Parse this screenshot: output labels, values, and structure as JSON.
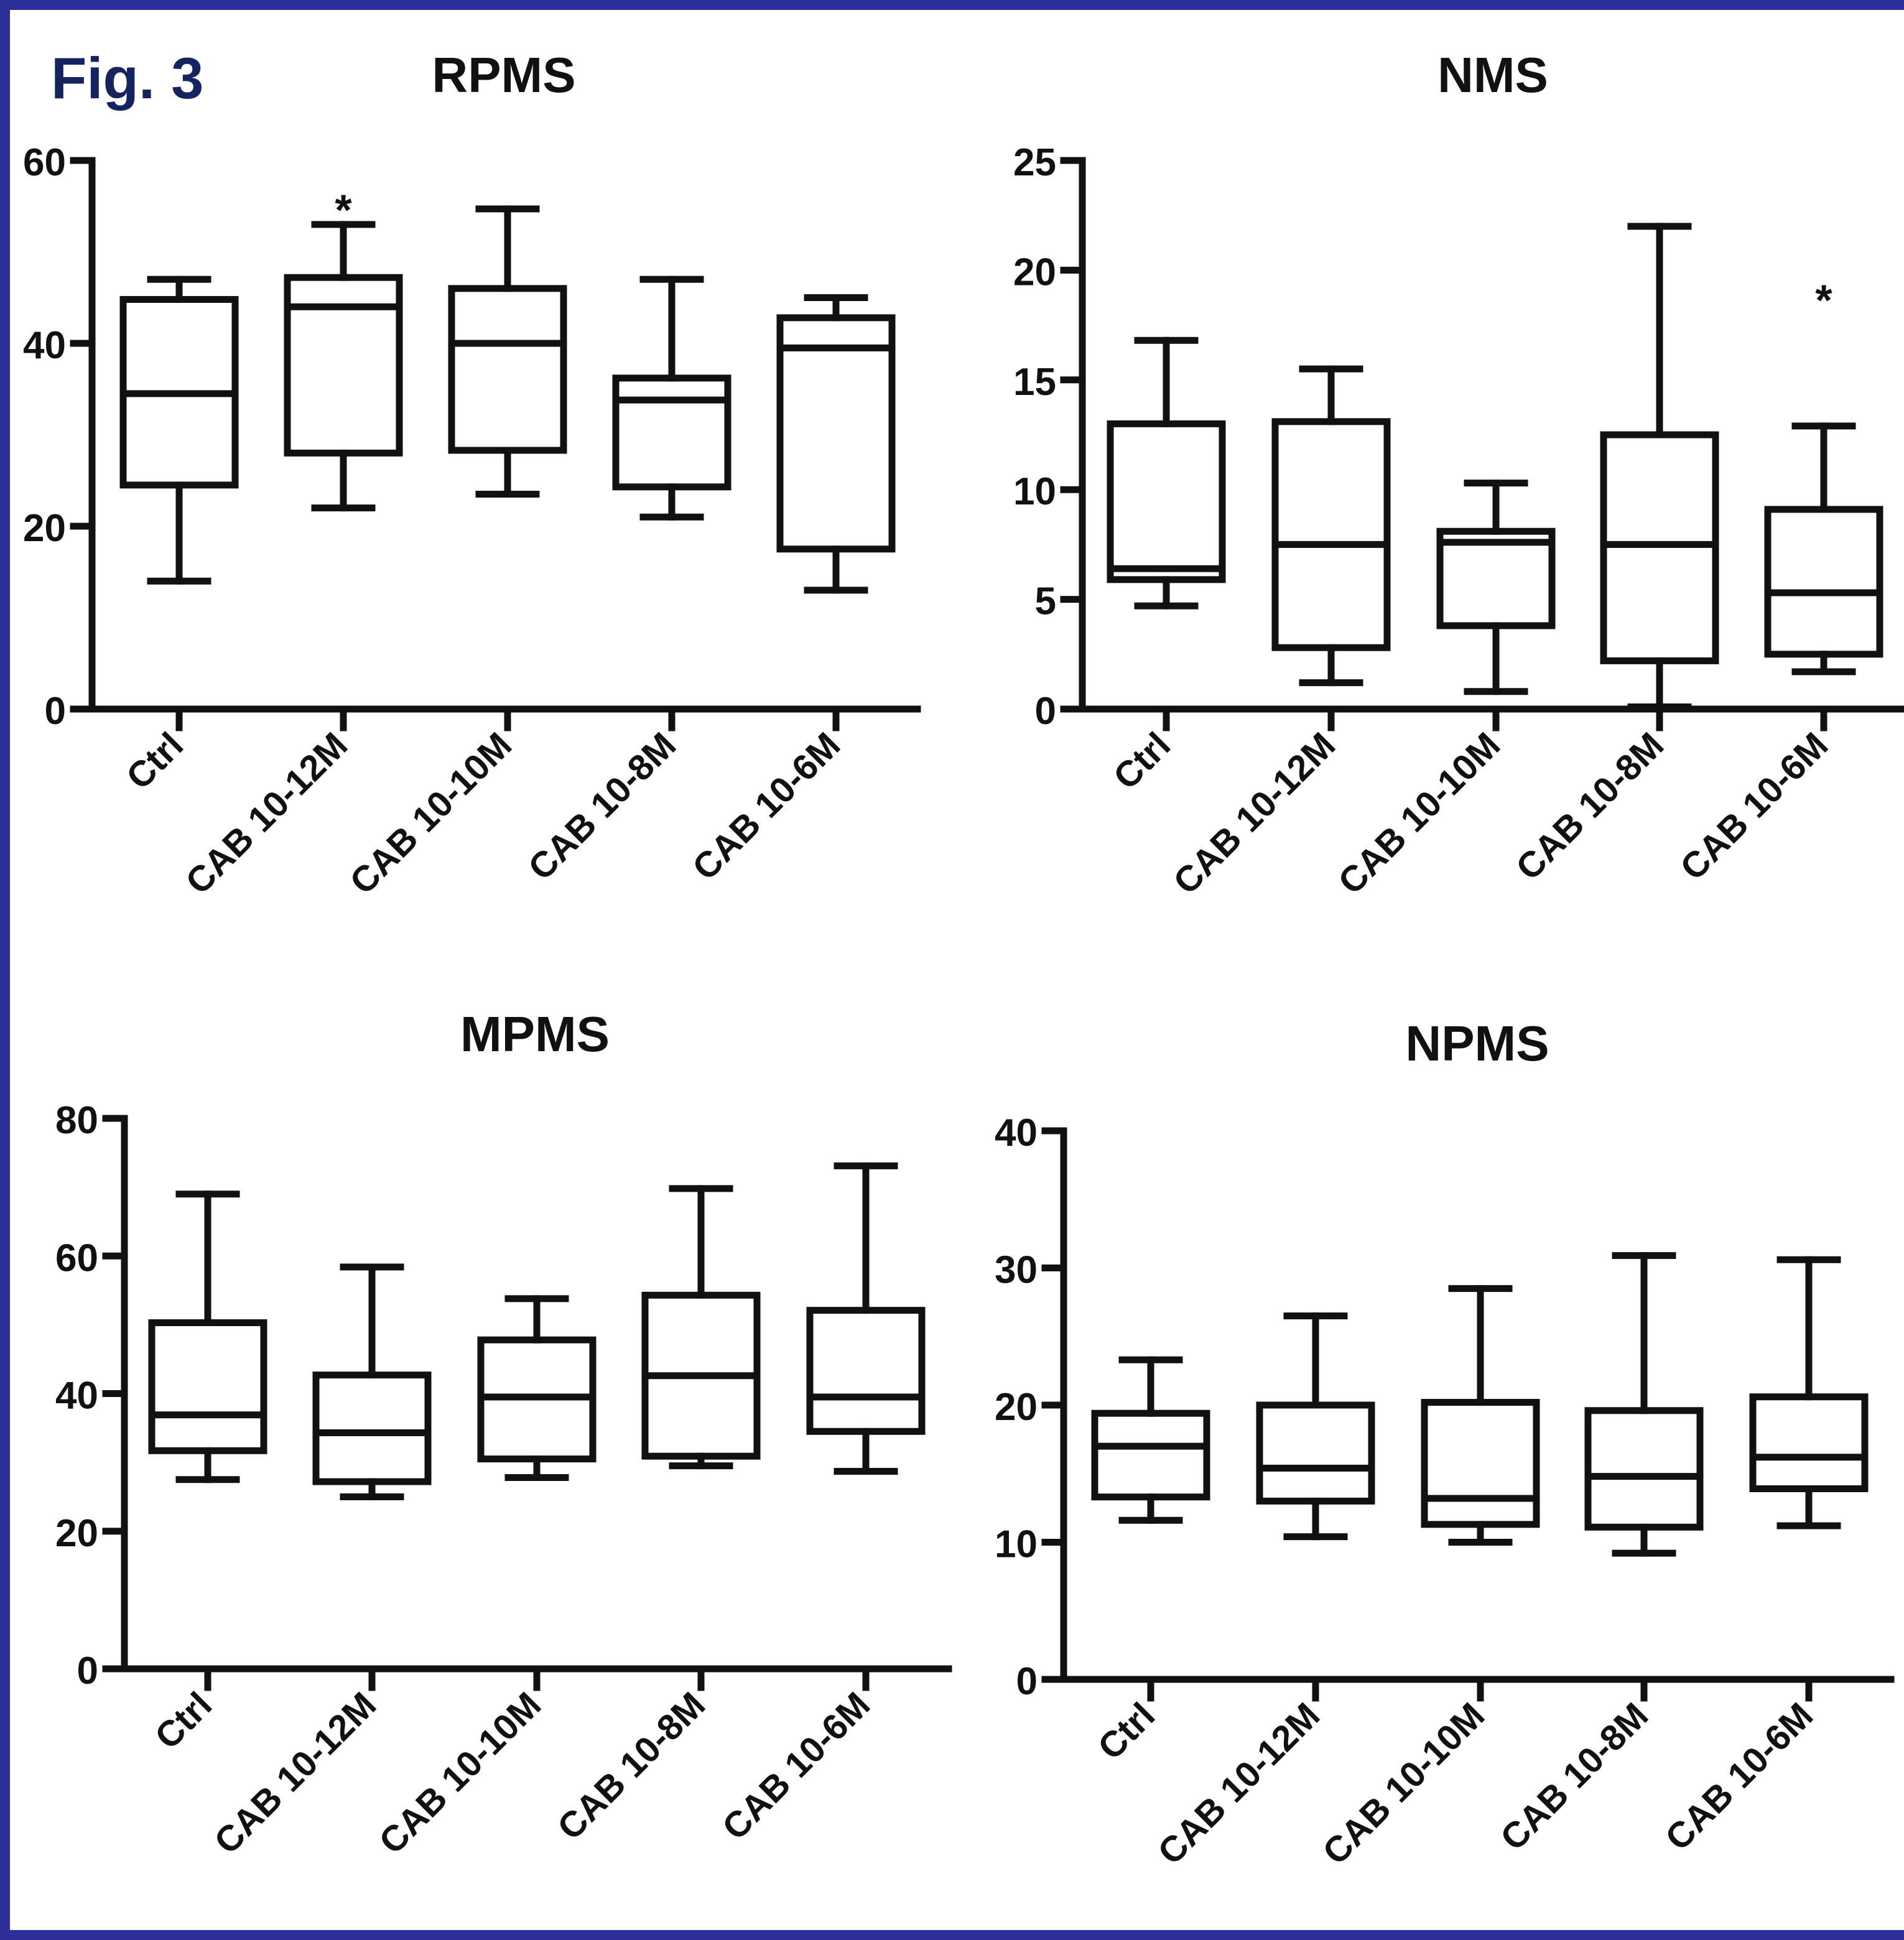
{
  "figure_label": "Fig. 3",
  "style": {
    "frame_color": "#2f2f9a",
    "label_color": "#15235e",
    "stroke_color": "#111111"
  },
  "chart_data": [
    {
      "type": "boxplot",
      "title": "RPMS",
      "categories": [
        "Ctrl",
        "CAB 10-12M",
        "CAB 10-10M",
        "CAB 10-8M",
        "CAB 10-6M"
      ],
      "ylim": [
        0,
        60
      ],
      "yticks": [
        0,
        20,
        40,
        60
      ],
      "boxes": [
        {
          "min": 14,
          "q1": 24.5,
          "median": 34.5,
          "q3": 44.8,
          "max": 47
        },
        {
          "min": 22,
          "q1": 28,
          "median": 44,
          "q3": 47.2,
          "max": 53
        },
        {
          "min": 23.5,
          "q1": 28.3,
          "median": 40,
          "q3": 46,
          "max": 54.7
        },
        {
          "min": 21,
          "q1": 24.3,
          "median": 33.8,
          "q3": 36.2,
          "max": 47
        },
        {
          "min": 13,
          "q1": 17.5,
          "median": 39.5,
          "q3": 42.8,
          "max": 45
        }
      ],
      "annotations": [
        {
          "category": "CAB 10-12M",
          "text": "*",
          "y": 55
        }
      ]
    },
    {
      "type": "boxplot",
      "title": "NMS",
      "categories": [
        "Ctrl",
        "CAB 10-12M",
        "CAB 10-10M",
        "CAB 10-8M",
        "CAB 10-6M"
      ],
      "ylim": [
        0,
        25
      ],
      "yticks": [
        0,
        5,
        10,
        15,
        20,
        25
      ],
      "boxes": [
        {
          "min": 4.7,
          "q1": 5.9,
          "median": 6.4,
          "q3": 13,
          "max": 16.8
        },
        {
          "min": 1.2,
          "q1": 2.8,
          "median": 7.5,
          "q3": 13.1,
          "max": 15.5
        },
        {
          "min": 0.8,
          "q1": 3.8,
          "median": 7.6,
          "q3": 8.1,
          "max": 10.3
        },
        {
          "min": 0.1,
          "q1": 2.2,
          "median": 7.5,
          "q3": 12.5,
          "max": 22
        },
        {
          "min": 1.7,
          "q1": 2.5,
          "median": 5.3,
          "q3": 9.1,
          "max": 12.9
        }
      ],
      "annotations": [
        {
          "category": "CAB 10-6M",
          "text": "*",
          "y": 18.8
        }
      ]
    },
    {
      "type": "boxplot",
      "title": "MPMS",
      "categories": [
        "Ctrl",
        "CAB 10-12M",
        "CAB 10-10M",
        "CAB 10-8M",
        "CAB 10-6M"
      ],
      "ylim": [
        0,
        80
      ],
      "yticks": [
        0,
        20,
        40,
        60,
        80
      ],
      "boxes": [
        {
          "min": 27.5,
          "q1": 31.7,
          "median": 36.9,
          "q3": 50.3,
          "max": 69
        },
        {
          "min": 25,
          "q1": 27.2,
          "median": 34.3,
          "q3": 42.7,
          "max": 58.4
        },
        {
          "min": 27.8,
          "q1": 30.5,
          "median": 39.5,
          "q3": 47.8,
          "max": 53.8
        },
        {
          "min": 29.5,
          "q1": 30.9,
          "median": 42.6,
          "q3": 54.3,
          "max": 69.8
        },
        {
          "min": 28.7,
          "q1": 34.5,
          "median": 39.5,
          "q3": 52.1,
          "max": 73.1
        }
      ],
      "annotations": []
    },
    {
      "type": "boxplot",
      "title": "NPMS",
      "categories": [
        "Ctrl",
        "CAB 10-12M",
        "CAB 10-10M",
        "CAB 10-8M",
        "CAB 10-6M"
      ],
      "ylim": [
        0,
        40
      ],
      "yticks": [
        0,
        10,
        20,
        30,
        40
      ],
      "boxes": [
        {
          "min": 11.6,
          "q1": 13.3,
          "median": 17,
          "q3": 19.4,
          "max": 23.3
        },
        {
          "min": 10.4,
          "q1": 13,
          "median": 15.4,
          "q3": 20,
          "max": 26.5
        },
        {
          "min": 10,
          "q1": 11.3,
          "median": 13.2,
          "q3": 20.2,
          "max": 28.5
        },
        {
          "min": 9.2,
          "q1": 11.1,
          "median": 14.8,
          "q3": 19.6,
          "max": 30.9
        },
        {
          "min": 11.2,
          "q1": 13.9,
          "median": 16.2,
          "q3": 20.6,
          "max": 30.6
        }
      ],
      "annotations": []
    }
  ]
}
